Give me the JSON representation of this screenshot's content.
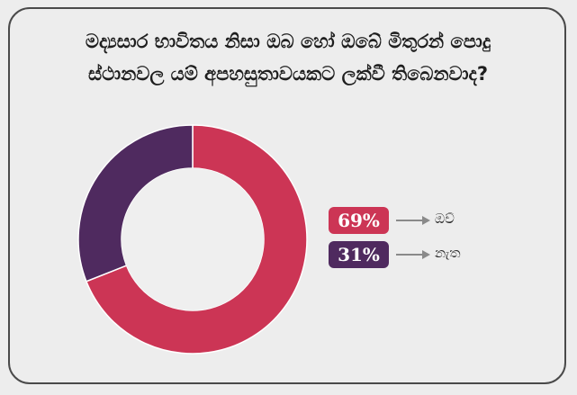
{
  "chart_data": {
    "type": "pie",
    "style": "donut",
    "title_lines": [
      "මද්‍යසාර භාවිතය නිසා ඔබ හෝ ඔබේ මිතුරන් පොදු",
      "ස්ථානවල යම් අපහසුතාවයකට ලක්වී තිබෙනවාද?"
    ],
    "slices": [
      {
        "label": "ඔව්",
        "value": 69,
        "value_label": "69%",
        "color": "#cc3555"
      },
      {
        "label": "නැත",
        "value": 31,
        "value_label": "31%",
        "color": "#4f2a5f"
      }
    ]
  },
  "colors": {
    "background": "#ededed",
    "card_border": "#4a4a4a",
    "donut_hole": "#efefef",
    "arrow": "#8a8a8a"
  }
}
